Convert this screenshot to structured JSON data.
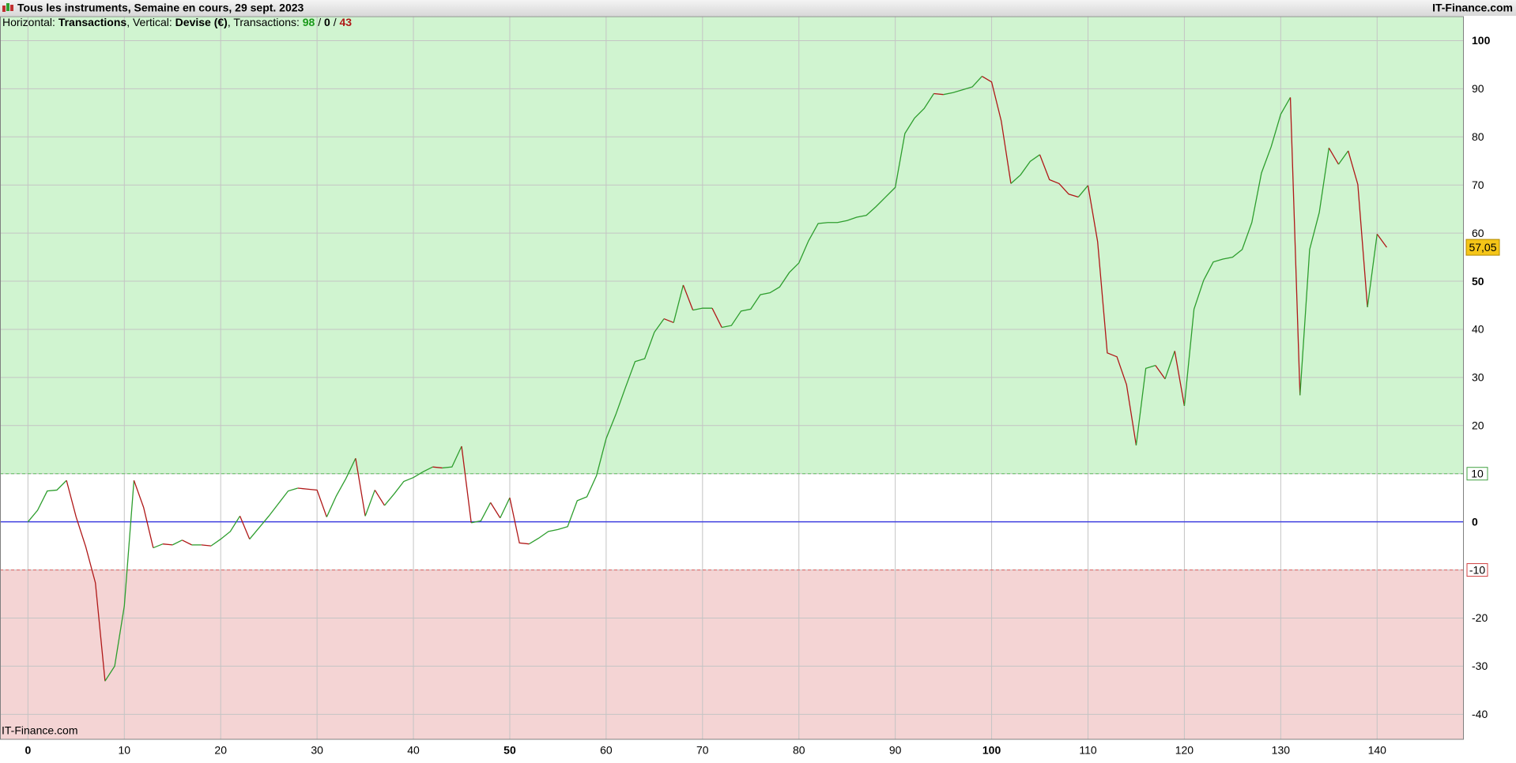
{
  "chart_data": {
    "type": "line",
    "title": "Tous les instruments, Semaine en cours, 29 sept. 2023",
    "brand": "IT-Finance.com",
    "watermark": "IT-Finance.com",
    "info": [
      {
        "label": "Horizontal:",
        "value": "Transactions"
      },
      {
        "label": "Vertical:",
        "value": "Devise (€)"
      }
    ],
    "transactions": {
      "label": "Transactions:",
      "wins": 98,
      "neutral": 0,
      "losses": 43
    },
    "x": [
      0,
      1,
      2,
      3,
      4,
      5,
      6,
      7,
      8,
      9,
      10,
      11,
      12,
      13,
      14,
      15,
      16,
      17,
      18,
      19,
      20,
      21,
      22,
      23,
      24,
      25,
      26,
      27,
      28,
      29,
      30,
      31,
      32,
      33,
      34,
      35,
      36,
      37,
      38,
      39,
      40,
      41,
      42,
      43,
      44,
      45,
      46,
      47,
      48,
      49,
      50,
      51,
      52,
      53,
      54,
      55,
      56,
      57,
      58,
      59,
      60,
      61,
      62,
      63,
      64,
      65,
      66,
      67,
      68,
      69,
      70,
      71,
      72,
      73,
      74,
      75,
      76,
      77,
      78,
      79,
      80,
      81,
      82,
      83,
      84,
      85,
      86,
      87,
      88,
      89,
      90,
      91,
      92,
      93,
      94,
      95,
      96,
      97,
      98,
      99,
      100,
      101,
      102,
      103,
      104,
      105,
      106,
      107,
      108,
      109,
      110,
      111,
      112,
      113,
      114,
      115,
      116,
      117,
      118,
      119,
      120,
      121,
      122,
      123,
      124,
      125,
      126,
      127,
      128,
      129,
      130,
      131,
      132,
      133,
      134,
      135,
      136,
      137,
      138,
      139,
      140,
      141
    ],
    "series": [
      {
        "up_color": "#2e9e2e",
        "down_color": "#b01818",
        "values": [
          0,
          2.4,
          6.4,
          6.6,
          8.6,
          1,
          -5.2,
          -12.7,
          -33.1,
          -30,
          -17.5,
          8.6,
          3,
          -5.4,
          -4.6,
          -4.8,
          -3.8,
          -4.8,
          -4.8,
          -5,
          -3.6,
          -2,
          1.2,
          -3.6,
          -1.2,
          1.2,
          3.8,
          6.4,
          7,
          6.8,
          6.6,
          1,
          5.4,
          9,
          13.2,
          1.2,
          6.6,
          3.4,
          5.8,
          8.4,
          9.2,
          10.4,
          11.4,
          11.2,
          11.4,
          15.7,
          -0.2,
          0.2,
          4,
          0.8,
          5,
          -4.4,
          -4.6,
          -3.4,
          -2,
          -1.6,
          -1,
          4.4,
          5.2,
          9.6,
          17.3,
          22.3,
          27.9,
          33.3,
          33.9,
          39.4,
          42.2,
          41.4,
          49.2,
          44,
          44.4,
          44.4,
          40.4,
          40.8,
          43.8,
          44.2,
          47.2,
          47.6,
          48.8,
          51.8,
          53.8,
          58.4,
          62,
          62.2,
          62.2,
          62.6,
          63.3,
          63.7,
          65.5,
          67.5,
          69.5,
          80.7,
          83.9,
          85.9,
          89,
          88.8,
          89.2,
          89.8,
          90.4,
          92.6,
          91.4,
          83.3,
          70.3,
          72.1,
          74.9,
          76.3,
          71.1,
          70.3,
          68.1,
          67.5,
          69.9,
          58.2,
          35.1,
          34.3,
          28.5,
          15.9,
          31.9,
          32.5,
          29.7,
          35.5,
          24.1,
          44.2,
          50.2,
          54,
          54.6,
          55,
          56.6,
          62.2,
          72.5,
          77.9,
          84.7,
          88.2,
          26.3,
          56.6,
          64.3,
          77.7,
          74.3,
          77.1,
          70.1,
          44.6,
          59.8,
          57.05
        ]
      }
    ],
    "last_value_label": "57,05",
    "zones": {
      "upper": 10,
      "lower": -10,
      "upper_color": "#d0f4d0",
      "lower_color": "#f4d4d4",
      "zero_color": "#4040e0"
    },
    "xlim": [
      -2.9,
      149
    ],
    "ylim": [
      -45.2,
      105
    ],
    "xticks": [
      0,
      10,
      20,
      30,
      40,
      50,
      60,
      70,
      80,
      90,
      100,
      110,
      120,
      130,
      140
    ],
    "yticks": [
      -40,
      -30,
      -20,
      -10,
      0,
      10,
      20,
      30,
      40,
      50,
      60,
      70,
      80,
      90,
      100
    ],
    "grid": true
  }
}
